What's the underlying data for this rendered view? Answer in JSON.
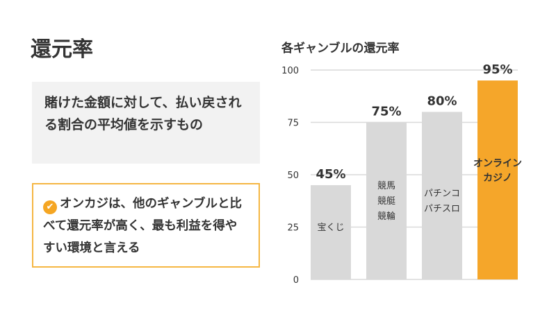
{
  "slide": {
    "title": "還元率",
    "definition": "賭けた金額に対して、払い戻される割合の平均値を示すもの",
    "note": "オンカジは、他のギャンブルと比べて還元率が高く、最も利益を得やすい環境と言える",
    "note_icon": "check-circle-icon"
  },
  "chart_data": {
    "type": "bar",
    "title": "各ギャンブルの還元率",
    "categories": [
      [
        "宝くじ"
      ],
      [
        "競馬",
        "競艇",
        "競輪"
      ],
      [
        "パチンコ",
        "パチスロ"
      ],
      [
        "オンライン",
        "カジノ"
      ]
    ],
    "values": [
      45,
      75,
      80,
      95
    ],
    "data_labels": [
      "45%",
      "75%",
      "80%",
      "95%"
    ],
    "yticks": [
      "0",
      "25",
      "50",
      "75",
      "100"
    ],
    "ylim": [
      0,
      100
    ],
    "grid": true,
    "colors": {
      "default": "#d9d9d9",
      "highlight": "#f5a62a"
    },
    "highlight_index": 3
  }
}
